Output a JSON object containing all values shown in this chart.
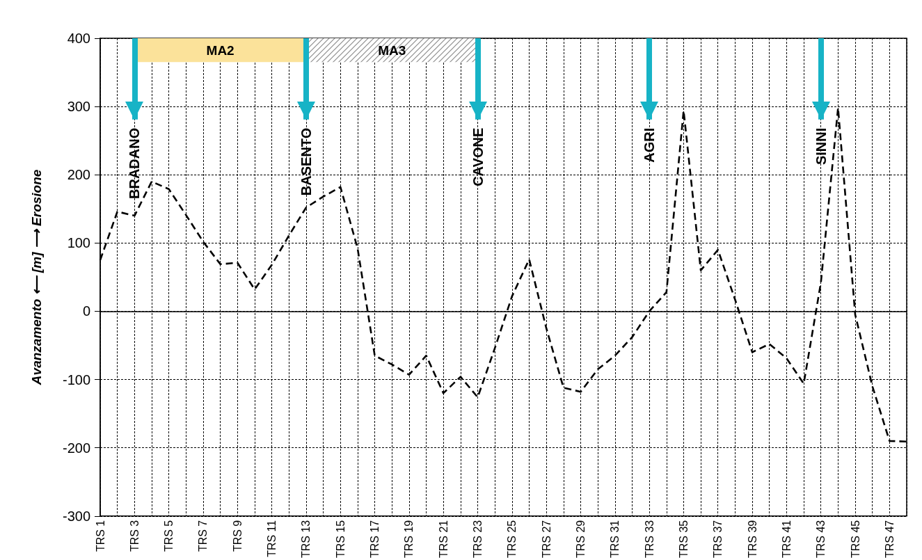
{
  "chart_data": {
    "type": "line",
    "ylabel": "Avanzamento ⟵ [m] ⟶ Erosione",
    "categories": [
      "TRS 1",
      null,
      "TRS 3",
      null,
      "TRS 5",
      null,
      "TRS 7",
      null,
      "TRS 9",
      null,
      "TRS 11",
      null,
      "TRS 13",
      null,
      "TRS 15",
      null,
      "TRS 17",
      null,
      "TRS 19",
      null,
      "TRS 21",
      null,
      "TRS 23",
      null,
      "TRS 25",
      null,
      "TRS 27",
      null,
      "TRS 29",
      null,
      "TRS 31",
      null,
      "TRS 33",
      null,
      "TRS 35",
      null,
      "TRS 37",
      null,
      "TRS 39",
      null,
      "TRS 41",
      null,
      "TRS 43",
      null,
      "TRS 45",
      null,
      "TRS 47",
      null
    ],
    "series": [
      {
        "color": "#000000",
        "values": [
          75,
          146,
          140,
          190,
          179,
          141,
          102,
          69,
          71,
          32,
          68,
          111,
          152,
          168,
          182,
          92,
          -65,
          -78,
          -93,
          -65,
          -120,
          -96,
          -126,
          -54,
          22,
          76,
          -25,
          -112,
          -118,
          -85,
          -65,
          -38,
          0,
          28,
          294,
          60,
          90,
          17,
          -60,
          -48,
          -69,
          -106,
          42,
          298,
          -5,
          -110,
          -190,
          -191
        ]
      }
    ],
    "ylim": [
      -300,
      400
    ],
    "yticks": [
      -300,
      -200,
      -100,
      0,
      100,
      200,
      300,
      400
    ],
    "grid": true,
    "marker": "none",
    "line_style": "dashed",
    "bands": [
      {
        "axis": "x",
        "from": "TRS 3",
        "to": "TRS 13",
        "label": "MA2",
        "color": "#fbe29a"
      },
      {
        "axis": "x",
        "from": "TRS 13",
        "to": "TRS 23",
        "label": "MA3",
        "color": "#8c8c8c"
      }
    ],
    "ref_lines": [
      {
        "axis": "x",
        "value": "TRS 3",
        "label": "BRADANO",
        "color": "#17b3c6"
      },
      {
        "axis": "x",
        "value": "TRS 13",
        "label": "BASENTO",
        "color": "#17b3c6"
      },
      {
        "axis": "x",
        "value": "TRS 23",
        "label": "CAVONE",
        "color": "#17b3c6"
      },
      {
        "axis": "x",
        "value": "TRS 33",
        "label": "AGRI",
        "color": "#17b3c6"
      },
      {
        "axis": "x",
        "value": "TRS 43",
        "label": "SINNI",
        "color": "#17b3c6"
      }
    ]
  }
}
